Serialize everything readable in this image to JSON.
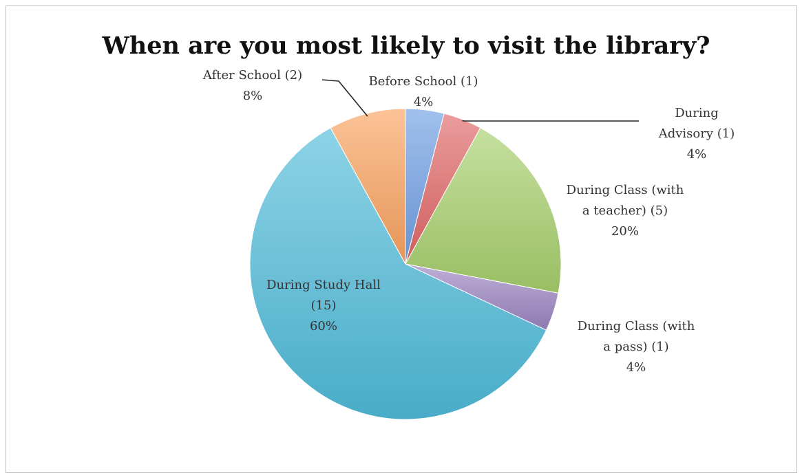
{
  "chart_data": {
    "type": "pie",
    "title": "When are you most likely to visit the library?",
    "slices": [
      {
        "label_lines": [
          "Before School (1)"
        ],
        "count": 1,
        "percent": 4,
        "percent_label": "4%",
        "color": "#6f9ee2"
      },
      {
        "label_lines": [
          "During",
          "Advisory (1)"
        ],
        "count": 1,
        "percent": 4,
        "percent_label": "4%",
        "color": "#e06666"
      },
      {
        "label_lines": [
          "During Class (with",
          "a teacher) (5)"
        ],
        "count": 5,
        "percent": 20,
        "percent_label": "20%",
        "color": "#a6cf6c"
      },
      {
        "label_lines": [
          "During Class (with",
          "a pass) (1)"
        ],
        "count": 1,
        "percent": 4,
        "percent_label": "4%",
        "color": "#9b84c0"
      },
      {
        "label_lines": [
          "During Study Hall",
          "(15)"
        ],
        "count": 15,
        "percent": 60,
        "percent_label": "60%",
        "color": "#4fbbd9"
      },
      {
        "label_lines": [
          "After School (2)"
        ],
        "count": 2,
        "percent": 8,
        "percent_label": "8%",
        "color": "#f9a25f"
      }
    ]
  }
}
